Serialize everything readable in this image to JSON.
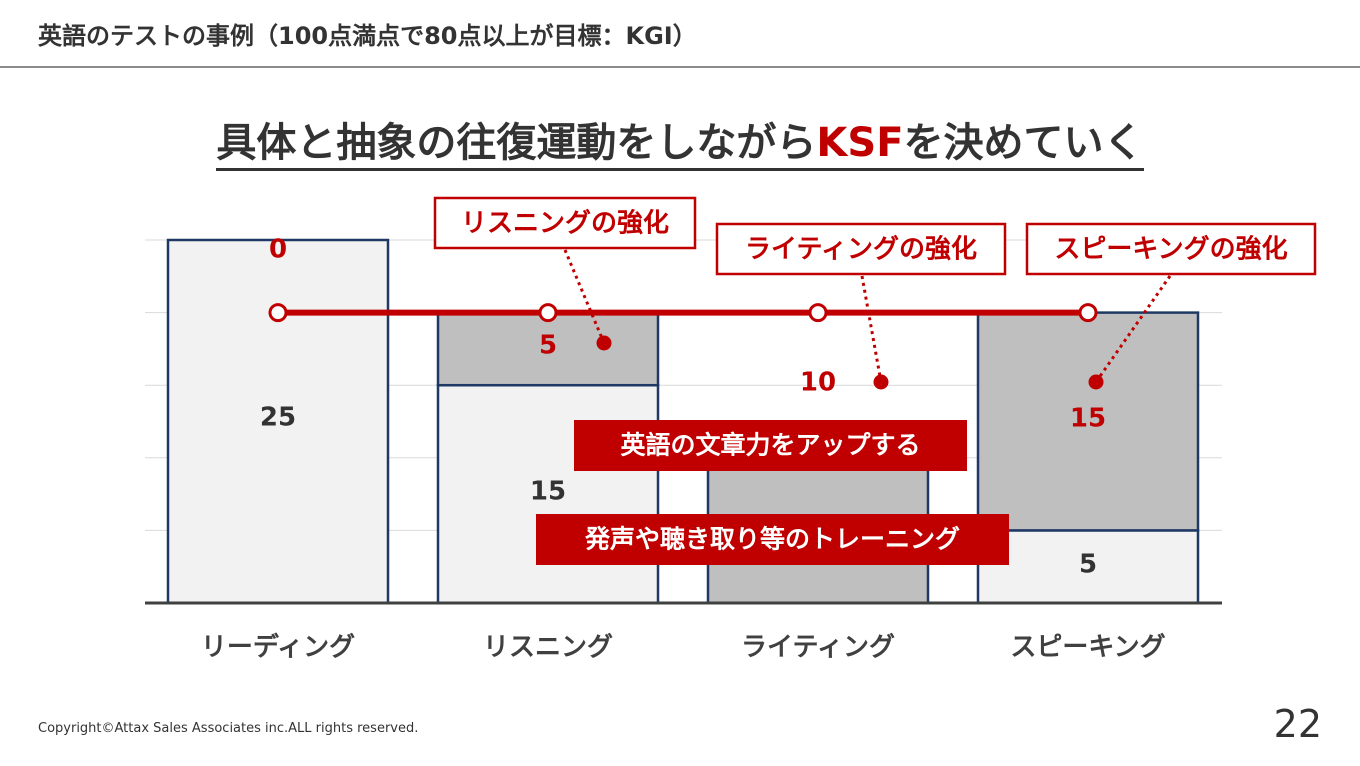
{
  "header": {
    "title": "英語のテストの事例（100点満点で80点以上が目標：KGI）"
  },
  "slide": {
    "title_prefix": "具体と抽象の往復運動をしながら",
    "title_accent": "KSF",
    "title_suffix": "を決めていく"
  },
  "colors": {
    "accent": "#c00000",
    "bar_light": "#f2f2f2",
    "bar_gray": "#bfbfbf",
    "bar_border": "#1f3864",
    "text": "#333333"
  },
  "chart_data": {
    "type": "bar",
    "stacked": true,
    "categories": [
      "リーディング",
      "リスニング",
      "ライティング",
      "スピーキング"
    ],
    "series": [
      {
        "values": [
          25,
          15,
          0,
          5
        ],
        "color": "#f2f2f2",
        "labels": [
          "25",
          "15",
          "",
          "5"
        ]
      },
      {
        "values": [
          0,
          5,
          10,
          15
        ],
        "color": "#bfbfbf",
        "labels": [
          "0",
          "5",
          "10",
          "15"
        ]
      }
    ],
    "target_line": {
      "value": 20
    },
    "ylim": [
      0,
      25
    ],
    "grid": true,
    "callouts": [
      {
        "text": "リスニングの強化",
        "category": 1
      },
      {
        "text": "ライティングの強化",
        "category": 2
      },
      {
        "text": "スピーキングの強化",
        "category": 3
      }
    ],
    "annotations": [
      {
        "text": "英語の文章力をアップする"
      },
      {
        "text": "発声や聴き取り等のトレーニング"
      }
    ]
  },
  "footer": {
    "copyright": "Copyright©Attax Sales Associates inc.ALL rights reserved.",
    "page": "22"
  }
}
